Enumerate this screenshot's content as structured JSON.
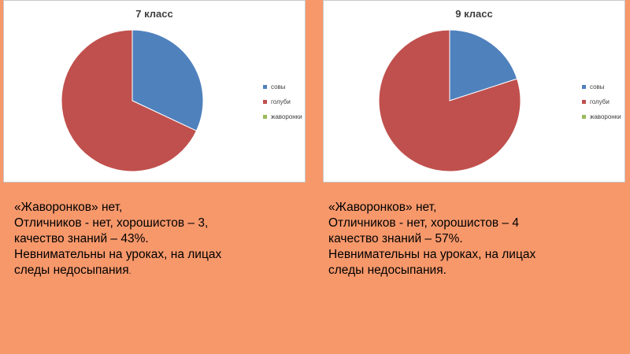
{
  "chart_data": [
    {
      "type": "pie",
      "title": "7 класс",
      "categories": [
        "совы",
        "голуби",
        "жаворонки"
      ],
      "values": [
        32,
        68,
        0
      ],
      "colors": [
        "#4f81bd",
        "#c0504d",
        "#9bbb59"
      ],
      "legend_position": "right"
    },
    {
      "type": "pie",
      "title": "9 класс",
      "categories": [
        "совы",
        "голуби",
        "жаворонки"
      ],
      "values": [
        20,
        80,
        0
      ],
      "colors": [
        "#4f81bd",
        "#c0504d",
        "#9bbb59"
      ],
      "legend_position": "right"
    }
  ],
  "captions": {
    "left": {
      "line1": "«Жаворонков» нет,",
      "line2": "Отличников - нет, хорошистов – 3,",
      "line3": "качество знаний – 43%.",
      "line4": "Невнимательны на уроках, на лицах",
      "line5_text": "следы недосыпания",
      "line5_end": "."
    },
    "right": {
      "line1": "«Жаворонков» нет,",
      "line2": "Отличников - нет, хорошистов – 4",
      "line3": "качество знаний – 57%.",
      "line4": "Невнимательны на уроках, на лицах",
      "line5": "следы недосыпания."
    }
  },
  "background_color": "#f7986b"
}
